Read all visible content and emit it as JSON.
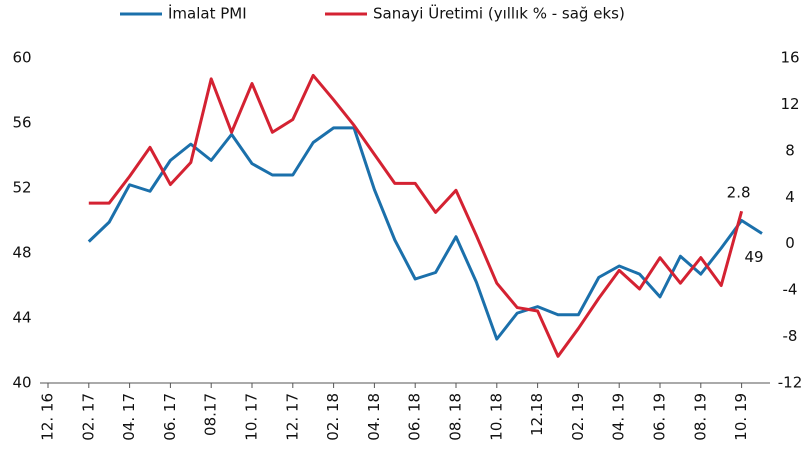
{
  "chart_data": {
    "type": "line",
    "categories": [
      "12. 16",
      null,
      "02. 17",
      null,
      "04. 17",
      null,
      "06. 17",
      null,
      "08.17",
      null,
      "10. 17",
      null,
      "12. 17",
      null,
      "02. 18",
      null,
      "04. 18",
      null,
      "06. 18",
      null,
      "08. 18",
      null,
      "10. 18",
      null,
      "12.18",
      null,
      "02. 19",
      null,
      "04. 19",
      null,
      "06. 19",
      null,
      "08. 19",
      null,
      "10. 19",
      null
    ],
    "series": [
      {
        "name": "İmalat PMI",
        "color": "#1b70ab",
        "values": [
          null,
          null,
          48.7,
          49.9,
          52.2,
          51.8,
          53.7,
          54.7,
          53.7,
          55.3,
          53.5,
          52.8,
          52.8,
          54.8,
          55.7,
          55.7,
          51.9,
          48.8,
          46.4,
          46.8,
          49.0,
          46.2,
          42.7,
          44.3,
          44.7,
          44.2,
          44.2,
          46.5,
          47.2,
          46.7,
          45.3,
          47.8,
          46.7,
          48.3,
          50.0,
          49.2
        ],
        "value_labels": {
          "35": "49"
        }
      },
      {
        "name": "Sanayi Üretimi (yıllık % - sağ eks)",
        "color": "#d42232",
        "axis": "y2",
        "values": [
          null,
          null,
          3.5,
          3.5,
          5.8,
          8.3,
          5.1,
          7.0,
          14.2,
          9.6,
          13.8,
          9.6,
          10.7,
          14.5,
          12.4,
          10.2,
          7.7,
          5.2,
          5.2,
          2.7,
          4.6,
          0.7,
          -3.4,
          -5.5,
          -5.8,
          -9.7,
          -7.3,
          -4.7,
          -2.3,
          -3.9,
          -1.2,
          -3.4,
          -1.2,
          -3.6,
          2.8,
          null
        ],
        "value_labels": {
          "34": "2.8"
        }
      }
    ],
    "ylim": [
      40,
      60
    ],
    "yticks": [
      40,
      44,
      48,
      52,
      56,
      60
    ],
    "y2lim": [
      -12,
      16
    ],
    "y2ticks": [
      -12,
      -8,
      -4,
      0,
      4,
      8,
      12,
      16
    ],
    "legend": "top"
  }
}
